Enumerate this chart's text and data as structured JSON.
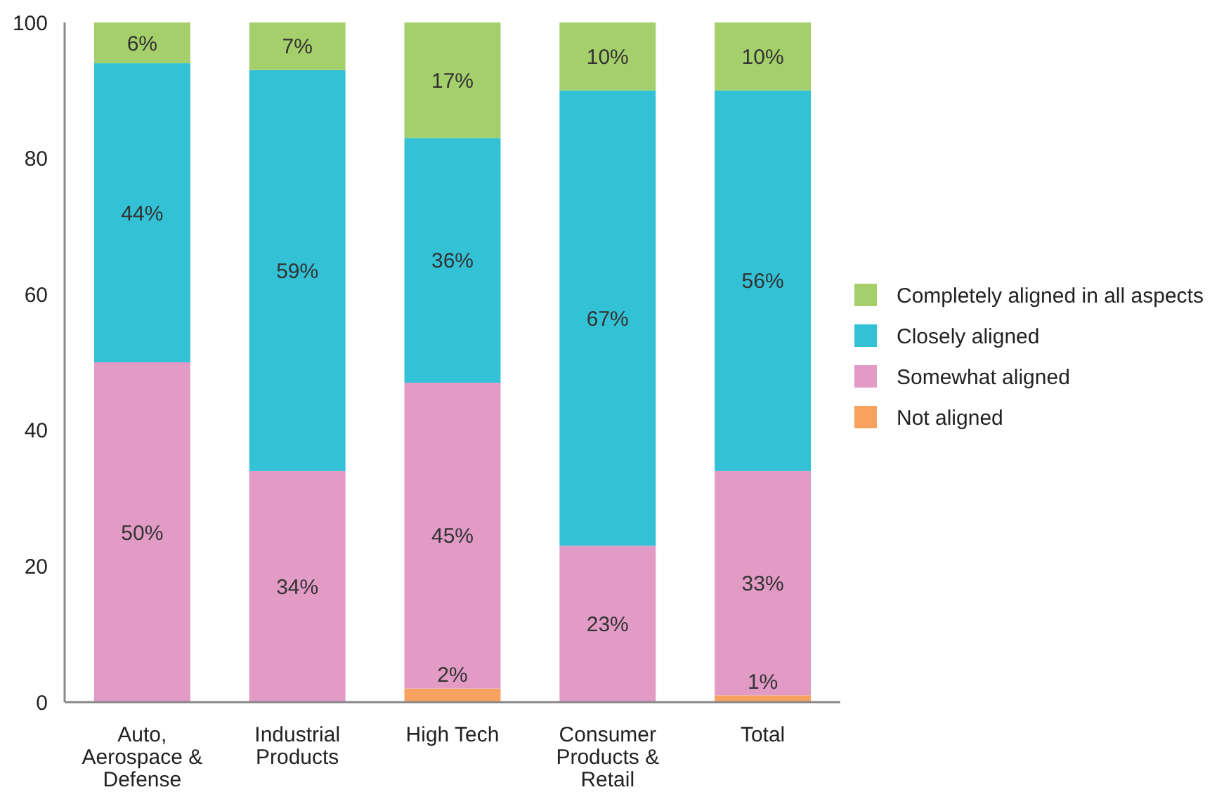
{
  "chart_data": {
    "type": "bar",
    "stacked": true,
    "categories": [
      "Auto, Aerospace & Defense",
      "Industrial Products",
      "High Tech",
      "Consumer Products & Retail",
      "Total"
    ],
    "series": [
      {
        "name": "Not aligned",
        "color": "#f7a25f",
        "values": [
          0,
          0,
          2,
          0,
          1
        ],
        "value_labels": [
          null,
          null,
          "2%",
          null,
          "1%"
        ]
      },
      {
        "name": "Somewhat aligned",
        "color": "#e29bc5",
        "values": [
          50,
          34,
          45,
          23,
          33
        ],
        "value_labels": [
          "50%",
          "34%",
          "45%",
          "23%",
          "33%"
        ]
      },
      {
        "name": "Closely aligned",
        "color": "#33c1d6",
        "values": [
          44,
          59,
          36,
          67,
          56
        ],
        "value_labels": [
          "44%",
          "59%",
          "36%",
          "67%",
          "56%"
        ]
      },
      {
        "name": "Completely aligned in all aspects",
        "color": "#a5cf6b",
        "values": [
          6,
          7,
          17,
          10,
          10
        ],
        "value_labels": [
          "6%",
          "7%",
          "17%",
          "10%",
          "10%"
        ]
      }
    ],
    "ylim": [
      0,
      100
    ],
    "yticks": [
      0,
      20,
      40,
      60,
      80,
      100
    ],
    "grid": false,
    "legend": "right"
  }
}
